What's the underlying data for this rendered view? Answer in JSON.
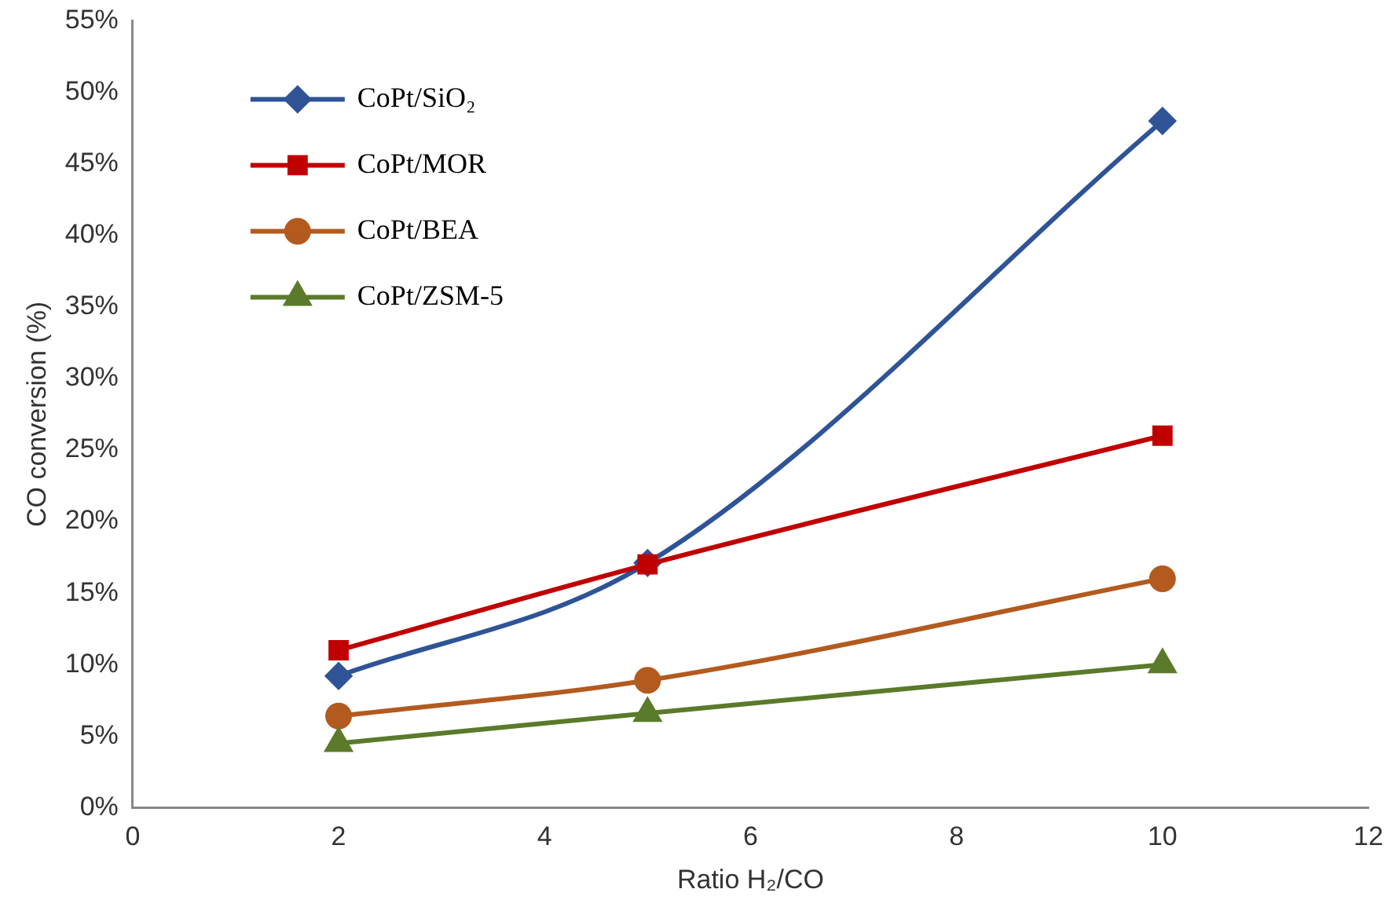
{
  "chart_data": {
    "type": "line",
    "xlabel": "Ratio H₂/CO",
    "ylabel": "CO conversion (%)",
    "xlim": [
      0,
      12
    ],
    "xticks": [
      0,
      2,
      4,
      6,
      8,
      10,
      12
    ],
    "ylim": [
      0,
      55
    ],
    "yticks": [
      {
        "value": 0,
        "label": "0%"
      },
      {
        "value": 5,
        "label": "5%"
      },
      {
        "value": 10,
        "label": "10%"
      },
      {
        "value": 15,
        "label": "15%"
      },
      {
        "value": 20,
        "label": "20%"
      },
      {
        "value": 25,
        "label": "25%"
      },
      {
        "value": 30,
        "label": "30%"
      },
      {
        "value": 35,
        "label": "35%"
      },
      {
        "value": 40,
        "label": "40%"
      },
      {
        "value": 45,
        "label": "45%"
      },
      {
        "value": 50,
        "label": "50%"
      },
      {
        "value": 55,
        "label": "55%"
      }
    ],
    "grid": false,
    "legend": "top left",
    "line_style": "solid",
    "series": [
      {
        "name": "CoPt/SiO₂",
        "color": "#2f5496",
        "marker": "diamond",
        "x": [
          2,
          5,
          10
        ],
        "values": [
          9.2,
          17.1,
          48
        ]
      },
      {
        "name": "CoPt/MOR",
        "color": "#c00000",
        "marker": "square",
        "x": [
          2,
          5,
          10
        ],
        "values": [
          11,
          17,
          26
        ]
      },
      {
        "name": "CoPt/BEA",
        "color": "#b35a1f",
        "marker": "circle",
        "x": [
          2,
          5,
          10
        ],
        "values": [
          6.4,
          8.9,
          16
        ]
      },
      {
        "name": "CoPt/ZSM-5",
        "color": "#5b7a2a",
        "marker": "triangle",
        "x": [
          2,
          5,
          10
        ],
        "values": [
          4.5,
          6.6,
          10
        ]
      }
    ]
  }
}
